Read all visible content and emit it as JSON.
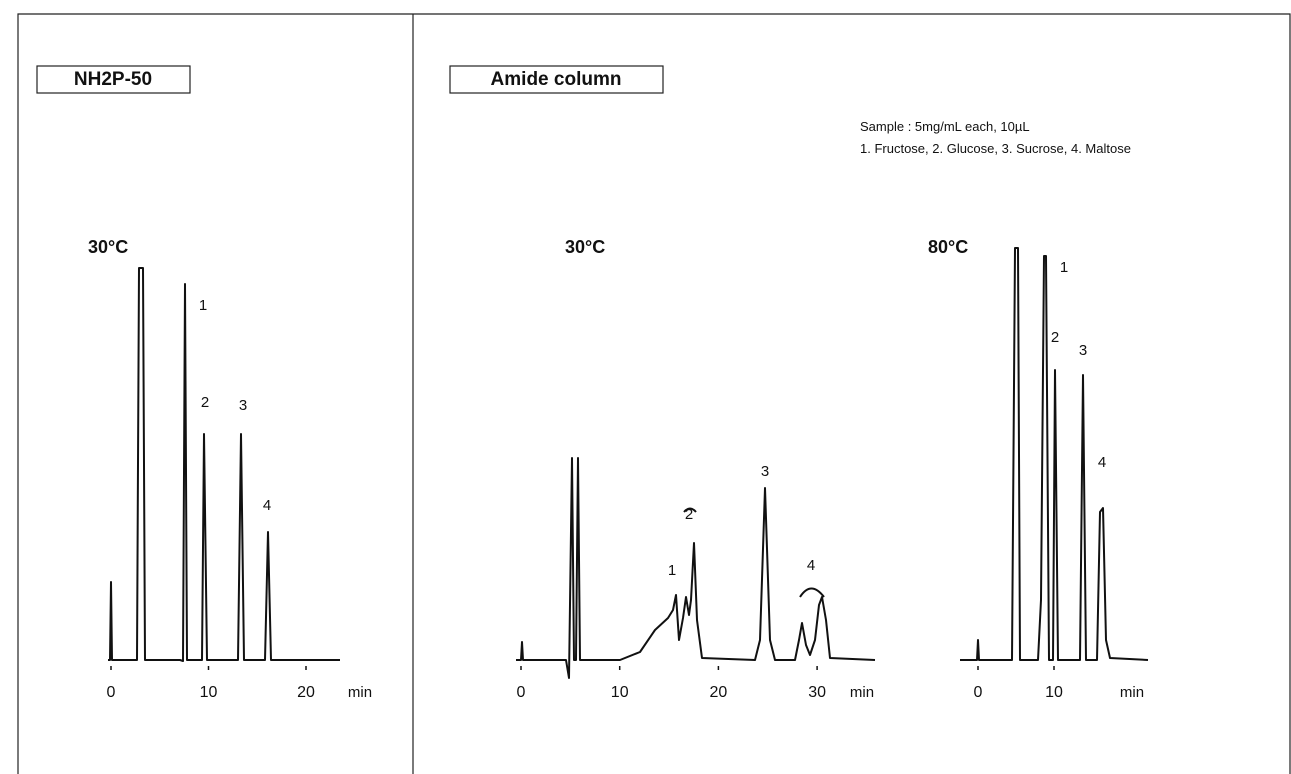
{
  "panels": [
    {
      "title": "NH2P-50",
      "charts": [
        {
          "type": "line",
          "title": "30°C",
          "x_label": "min",
          "xticks": [
            0,
            10,
            20
          ],
          "peak_labels": [
            "1",
            "2",
            "3",
            "4"
          ]
        }
      ]
    },
    {
      "title": "Amide column",
      "notes": [
        "Sample : 5mg/mL each, 10µL",
        "1. Fructose,  2. Glucose,  3. Sucrose,  4. Maltose"
      ],
      "charts": [
        {
          "type": "line",
          "title": "30°C",
          "x_label": "min",
          "xticks": [
            0,
            10,
            20,
            30
          ],
          "peak_labels": [
            "1",
            "2",
            "3",
            "4"
          ]
        },
        {
          "type": "line",
          "title": "80°C",
          "x_label": "min",
          "xticks": [
            0,
            10
          ],
          "peak_labels": [
            "1",
            "2",
            "3",
            "4"
          ]
        }
      ]
    }
  ]
}
